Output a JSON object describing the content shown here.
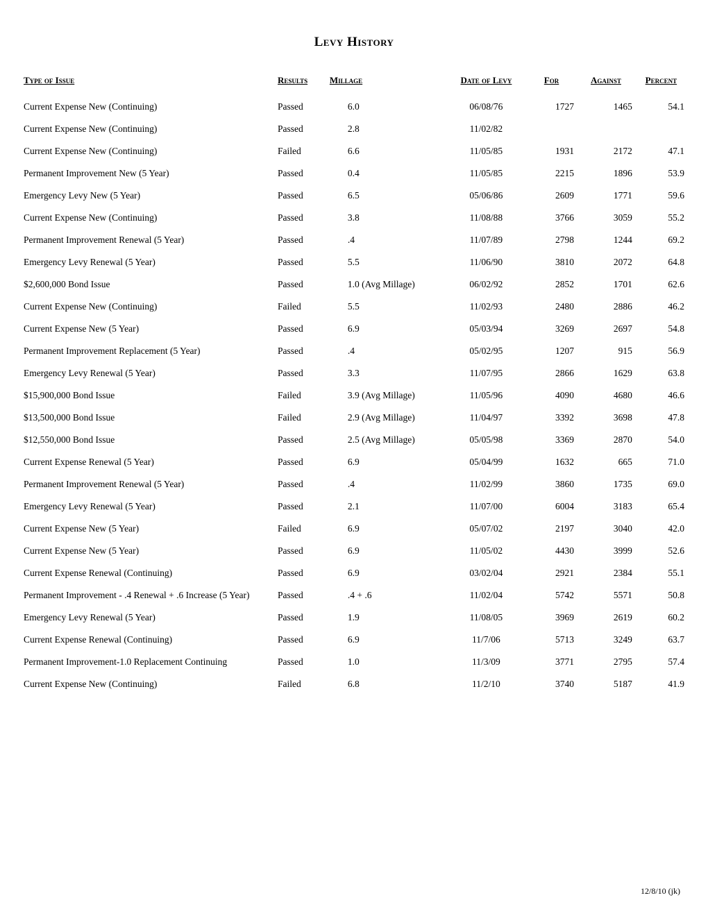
{
  "title": "Levy History",
  "footer": "12/8/10 (jk)",
  "headers": {
    "type": "Type of Issue",
    "results": "Results",
    "millage": "Millage",
    "date": "Date of Levy",
    "for": "For",
    "against": "Against",
    "percent": "Percent"
  },
  "rows": [
    {
      "type": "Current Expense New (Continuing)",
      "results": "Passed",
      "millage": "6.0",
      "date": "06/08/76",
      "for": "1727",
      "against": "1465",
      "percent": "54.1"
    },
    {
      "type": "Current Expense New (Continuing)",
      "results": "Passed",
      "millage": "2.8",
      "date": "11/02/82",
      "for": "",
      "against": "",
      "percent": ""
    },
    {
      "type": "Current Expense New (Continuing)",
      "results": "Failed",
      "millage": "6.6",
      "date": "11/05/85",
      "for": "1931",
      "against": "2172",
      "percent": "47.1"
    },
    {
      "type": "Permanent Improvement New (5 Year)",
      "results": "Passed",
      "millage": "0.4",
      "date": "11/05/85",
      "for": "2215",
      "against": "1896",
      "percent": "53.9"
    },
    {
      "type": "Emergency Levy New (5 Year)",
      "results": "Passed",
      "millage": "6.5",
      "date": "05/06/86",
      "for": "2609",
      "against": "1771",
      "percent": "59.6"
    },
    {
      "type": "Current Expense New (Continuing)",
      "results": "Passed",
      "millage": "3.8",
      "date": "11/08/88",
      "for": "3766",
      "against": "3059",
      "percent": "55.2"
    },
    {
      "type": "Permanent Improvement Renewal (5 Year)",
      "results": "Passed",
      "millage": ".4",
      "date": "11/07/89",
      "for": "2798",
      "against": "1244",
      "percent": "69.2"
    },
    {
      "type": "Emergency Levy Renewal (5 Year)",
      "results": "Passed",
      "millage": "5.5",
      "date": "11/06/90",
      "for": "3810",
      "against": "2072",
      "percent": "64.8"
    },
    {
      "type": "$2,600,000 Bond Issue",
      "results": "Passed",
      "millage": "1.0 (Avg Millage)",
      "date": "06/02/92",
      "for": "2852",
      "against": "1701",
      "percent": "62.6"
    },
    {
      "type": "Current Expense New (Continuing)",
      "results": "Failed",
      "millage": "5.5",
      "date": "11/02/93",
      "for": "2480",
      "against": "2886",
      "percent": "46.2"
    },
    {
      "type": "Current Expense New (5 Year)",
      "results": "Passed",
      "millage": "6.9",
      "date": "05/03/94",
      "for": "3269",
      "against": "2697",
      "percent": "54.8"
    },
    {
      "type": "Permanent Improvement Replacement (5 Year)",
      "results": "Passed",
      "millage": ".4",
      "date": "05/02/95",
      "for": "1207",
      "against": "915",
      "percent": "56.9"
    },
    {
      "type": "Emergency Levy Renewal (5 Year)",
      "results": "Passed",
      "millage": "3.3",
      "date": "11/07/95",
      "for": "2866",
      "against": "1629",
      "percent": "63.8"
    },
    {
      "type": "$15,900,000 Bond Issue",
      "results": "Failed",
      "millage": "3.9 (Avg Millage)",
      "date": "11/05/96",
      "for": "4090",
      "against": "4680",
      "percent": "46.6"
    },
    {
      "type": "$13,500,000 Bond Issue",
      "results": "Failed",
      "millage": "2.9 (Avg Millage)",
      "date": "11/04/97",
      "for": "3392",
      "against": "3698",
      "percent": "47.8"
    },
    {
      "type": "$12,550,000 Bond Issue",
      "results": "Passed",
      "millage": "2.5 (Avg Millage)",
      "date": "05/05/98",
      "for": "3369",
      "against": "2870",
      "percent": "54.0"
    },
    {
      "type": "Current Expense Renewal (5 Year)",
      "results": "Passed",
      "millage": "6.9",
      "date": "05/04/99",
      "for": "1632",
      "against": "665",
      "percent": "71.0"
    },
    {
      "type": "Permanent Improvement Renewal (5 Year)",
      "results": "Passed",
      "millage": ".4",
      "date": "11/02/99",
      "for": "3860",
      "against": "1735",
      "percent": "69.0"
    },
    {
      "type": "Emergency Levy Renewal (5 Year)",
      "results": "Passed",
      "millage": "2.1",
      "date": "11/07/00",
      "for": "6004",
      "against": "3183",
      "percent": "65.4"
    },
    {
      "type": "Current Expense New (5 Year)",
      "results": "Failed",
      "millage": "6.9",
      "date": "05/07/02",
      "for": "2197",
      "against": "3040",
      "percent": "42.0"
    },
    {
      "type": "Current Expense New (5 Year)",
      "results": "Passed",
      "millage": "6.9",
      "date": "11/05/02",
      "for": "4430",
      "against": "3999",
      "percent": "52.6"
    },
    {
      "type": "Current Expense Renewal (Continuing)",
      "results": "Passed",
      "millage": "6.9",
      "date": "03/02/04",
      "for": "2921",
      "against": "2384",
      "percent": "55.1"
    },
    {
      "type": "Permanent Improvement - .4 Renewal + .6 Increase (5 Year)",
      "results": "Passed",
      "millage": ".4 + .6",
      "date": "11/02/04",
      "for": "5742",
      "against": "5571",
      "percent": "50.8"
    },
    {
      "type": "Emergency Levy Renewal (5 Year)",
      "results": "Passed",
      "millage": "1.9",
      "date": "11/08/05",
      "for": "3969",
      "against": "2619",
      "percent": "60.2"
    },
    {
      "type": "Current Expense Renewal (Continuing)",
      "results": "Passed",
      "millage": "6.9",
      "date": "11/7/06",
      "for": "5713",
      "against": "3249",
      "percent": "63.7"
    },
    {
      "type": "Permanent Improvement-1.0 Replacement Continuing",
      "results": "Passed",
      "millage": "1.0",
      "date": "11/3/09",
      "for": "3771",
      "against": "2795",
      "percent": "57.4"
    },
    {
      "type": "Current Expense New (Continuing)",
      "results": "Failed",
      "millage": "6.8",
      "date": "11/2/10",
      "for": "3740",
      "against": "5187",
      "percent": "41.9"
    }
  ]
}
